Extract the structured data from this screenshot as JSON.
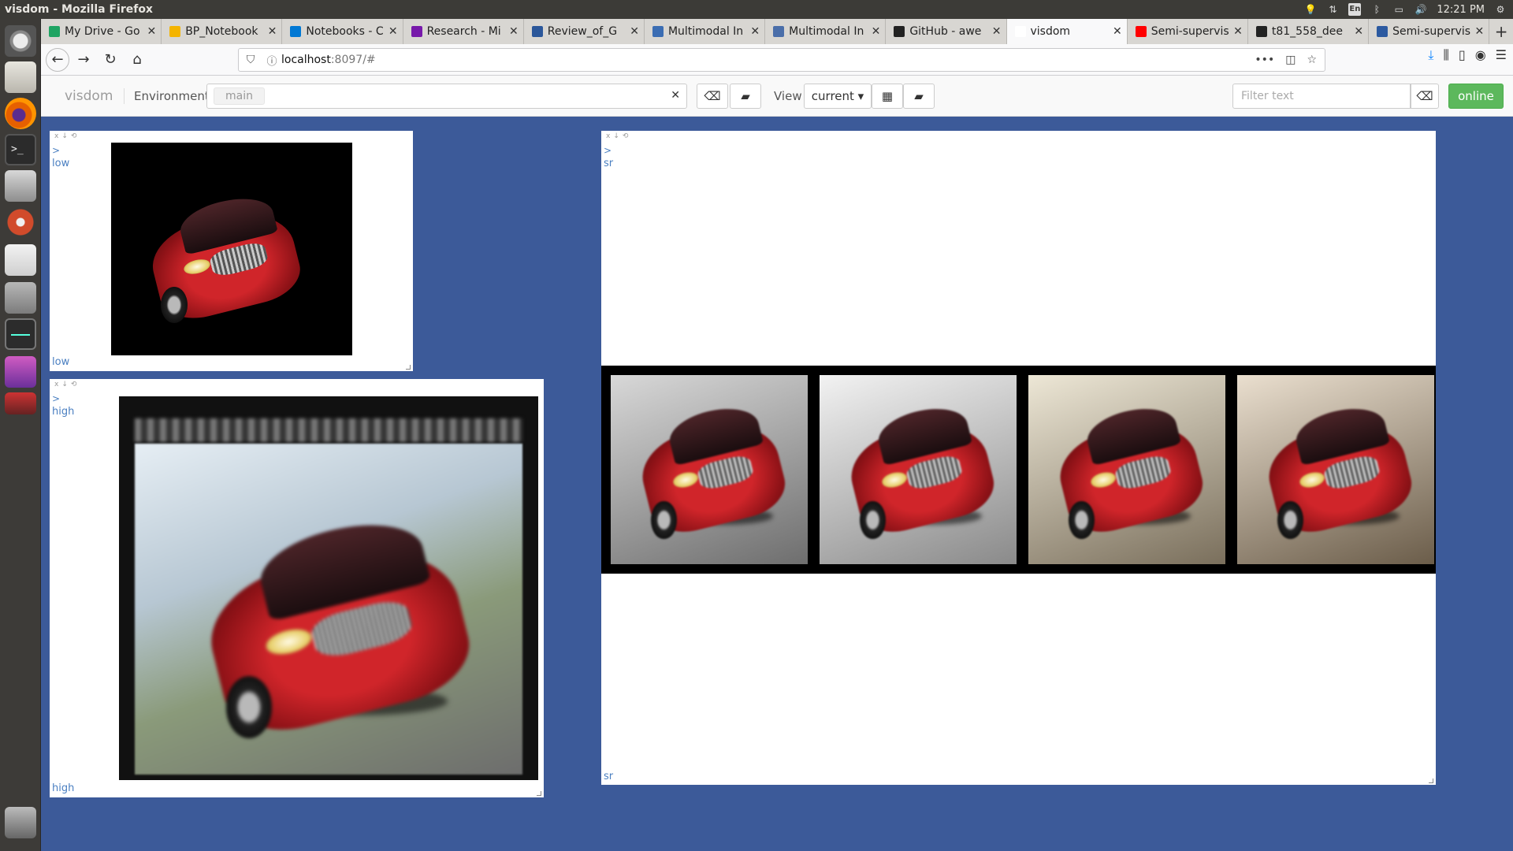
{
  "topbar": {
    "window_title": "visdom - Mozilla Firefox",
    "keyboard": "En",
    "time": "12:21 PM"
  },
  "browser": {
    "tabs": [
      {
        "label": "My Drive - Go",
        "favicon_color": "#1fa463",
        "active": false
      },
      {
        "label": "BP_Notebook",
        "favicon_color": "#f4b400",
        "active": false
      },
      {
        "label": "Notebooks - C",
        "favicon_color": "#0078d4",
        "active": false
      },
      {
        "label": "Research - Mi",
        "favicon_color": "#7719aa",
        "active": false
      },
      {
        "label": "Review_of_G",
        "favicon_color": "#2b579a",
        "active": false
      },
      {
        "label": "Multimodal In",
        "favicon_color": "#3b6db3",
        "active": false
      },
      {
        "label": "Multimodal In",
        "favicon_color": "#4a6ea9",
        "active": false
      },
      {
        "label": "GitHub - awe",
        "favicon_color": "#222222",
        "active": false
      },
      {
        "label": "visdom",
        "favicon_color": "#ffffff",
        "active": true
      },
      {
        "label": "Semi-supervis",
        "favicon_color": "#ff0000",
        "active": false
      },
      {
        "label": "t81_558_dee",
        "favicon_color": "#222222",
        "active": false
      },
      {
        "label": "Semi-supervis",
        "favicon_color": "#2c5aa0",
        "active": false
      }
    ],
    "url_host": "localhost",
    "url_rest": ":8097/#"
  },
  "visdom": {
    "brand": "visdom",
    "environment_label": "Environment",
    "environment_tag": "main",
    "view_label": "View",
    "view_value": "current",
    "filter_placeholder": "Filter text",
    "status": "online"
  },
  "panes": {
    "low": {
      "caret": ">",
      "title": "low",
      "footer": "low"
    },
    "high": {
      "caret": ">",
      "title": "high",
      "footer": "high"
    },
    "sr": {
      "caret": ">",
      "title": "sr",
      "footer": "sr",
      "image_count": 4
    }
  },
  "colors": {
    "background": "#3c5a99",
    "online": "#5cb85c",
    "pane_text": "#4a7fc1"
  }
}
